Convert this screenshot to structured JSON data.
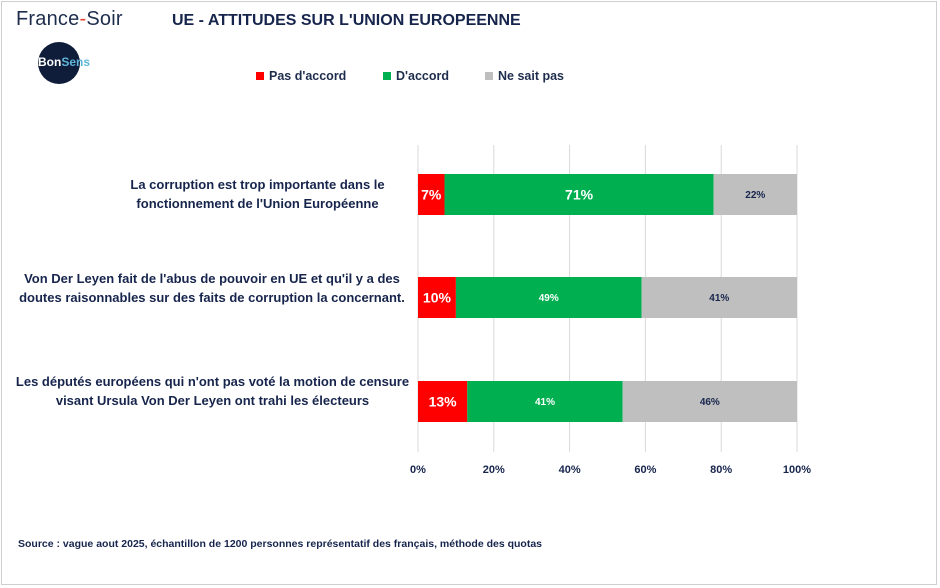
{
  "header": {
    "brand_name": "France",
    "brand_separator": "-",
    "brand_name_2": "Soir",
    "logo_text": "Bon",
    "logo_text_2": "Sens"
  },
  "chart_data": {
    "type": "bar",
    "orientation": "horizontal",
    "stacked": true,
    "title": "UE - ATTITUDES SUR L'UNION EUROPEENNE",
    "categories": [
      "La corruption est trop importante dans le fonctionnement de l'Union Européenne",
      "Von Der Leyen fait de l'abus de pouvoir en UE et qu'il y a des doutes raisonnables sur des faits de corruption la concernant.",
      "Les députés européens qui n'ont pas voté la motion de censure visant Ursula Von Der Leyen ont trahi les électeurs"
    ],
    "series": [
      {
        "name": "Pas d'accord",
        "color": "#ff0000",
        "values": [
          7,
          10,
          13
        ],
        "labels": [
          "7%",
          "10%",
          "13%"
        ]
      },
      {
        "name": "D'accord",
        "color": "#00b050",
        "values": [
          71,
          49,
          41
        ],
        "labels": [
          "71%",
          "49%",
          "41%"
        ]
      },
      {
        "name": "Ne sait pas",
        "color": "#bfbfbf",
        "values": [
          22,
          41,
          46
        ],
        "labels": [
          "22%",
          "41%",
          "46%"
        ]
      }
    ],
    "xlim": [
      0,
      100
    ],
    "xticks": [
      0,
      20,
      40,
      60,
      80,
      100
    ],
    "xtick_labels": [
      "0%",
      "20%",
      "40%",
      "60%",
      "80%",
      "100%"
    ],
    "grid": true,
    "legend_position": "top"
  },
  "footer": {
    "source": "Source : vague aout 2025, échantillon de 1200 personnes représentatif des français, méthode des quotas"
  }
}
